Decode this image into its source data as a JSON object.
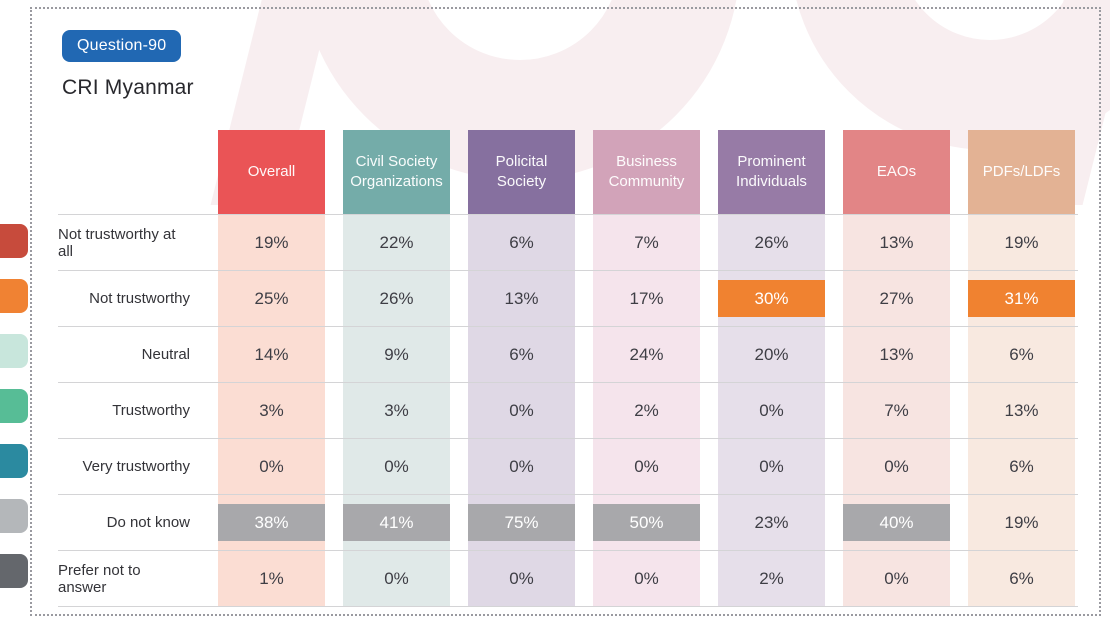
{
  "badge": {
    "label": "Question-90",
    "bg": "#2168b3"
  },
  "title": "CRI Myanmar",
  "chart_data": {
    "type": "table",
    "question": "Question-90",
    "title": "CRI Myanmar",
    "legend_position": "left-chip-rail",
    "highlight_colors": {
      "orange": "#F08230",
      "gray": "#A8A8AB"
    },
    "columns": [
      {
        "label": "Overall",
        "header_bg": "#EA5456",
        "body_bg": "#FBDDD3"
      },
      {
        "label": "Civil Society Organizations",
        "header_bg": "#74ACA9",
        "body_bg": "#E0E9E8"
      },
      {
        "label": "Policital Society",
        "header_bg": "#86709F",
        "body_bg": "#DFD8E5"
      },
      {
        "label": "Business Community",
        "header_bg": "#D2A3B9",
        "body_bg": "#F5E4EC"
      },
      {
        "label": "Prominent Individuals",
        "header_bg": "#977BA6",
        "body_bg": "#E6DFEA"
      },
      {
        "label": "EAOs",
        "header_bg": "#E28586",
        "body_bg": "#F7E4E1"
      },
      {
        "label": "PDFs/LDFs",
        "header_bg": "#E3B294",
        "body_bg": "#F8E9E0"
      }
    ],
    "rows": [
      {
        "label": "Not trustworthy at all",
        "chip_color": "#C74B3C",
        "values": [
          "19%",
          "22%",
          "6%",
          "7%",
          "26%",
          "13%",
          "19%"
        ],
        "highlights": [
          null,
          null,
          null,
          null,
          null,
          null,
          null
        ]
      },
      {
        "label": "Not trustworthy",
        "chip_color": "#F08233",
        "values": [
          "25%",
          "26%",
          "13%",
          "17%",
          "30%",
          "27%",
          "31%"
        ],
        "highlights": [
          null,
          null,
          null,
          null,
          "orange",
          null,
          "orange"
        ]
      },
      {
        "label": "Neutral",
        "chip_color": "#C8E6DC",
        "values": [
          "14%",
          "9%",
          "6%",
          "24%",
          "20%",
          "13%",
          "6%"
        ],
        "highlights": [
          null,
          null,
          null,
          null,
          null,
          null,
          null
        ]
      },
      {
        "label": "Trustworthy",
        "chip_color": "#57BD96",
        "values": [
          "3%",
          "3%",
          "0%",
          "2%",
          "0%",
          "7%",
          "13%"
        ],
        "highlights": [
          null,
          null,
          null,
          null,
          null,
          null,
          null
        ]
      },
      {
        "label": "Very trustworthy",
        "chip_color": "#2B8AA0",
        "values": [
          "0%",
          "0%",
          "0%",
          "0%",
          "0%",
          "0%",
          "6%"
        ],
        "highlights": [
          null,
          null,
          null,
          null,
          null,
          null,
          null
        ]
      },
      {
        "label": "Do not know",
        "chip_color": "#B4B7BA",
        "values": [
          "38%",
          "41%",
          "75%",
          "50%",
          "23%",
          "40%",
          "19%"
        ],
        "highlights": [
          "gray",
          "gray",
          "gray",
          "gray",
          null,
          "gray",
          null
        ]
      },
      {
        "label": "Prefer not to answer",
        "chip_color": "#64676C",
        "values": [
          "1%",
          "0%",
          "0%",
          "0%",
          "2%",
          "0%",
          "6%"
        ],
        "highlights": [
          null,
          null,
          null,
          null,
          null,
          null,
          null
        ]
      }
    ]
  }
}
